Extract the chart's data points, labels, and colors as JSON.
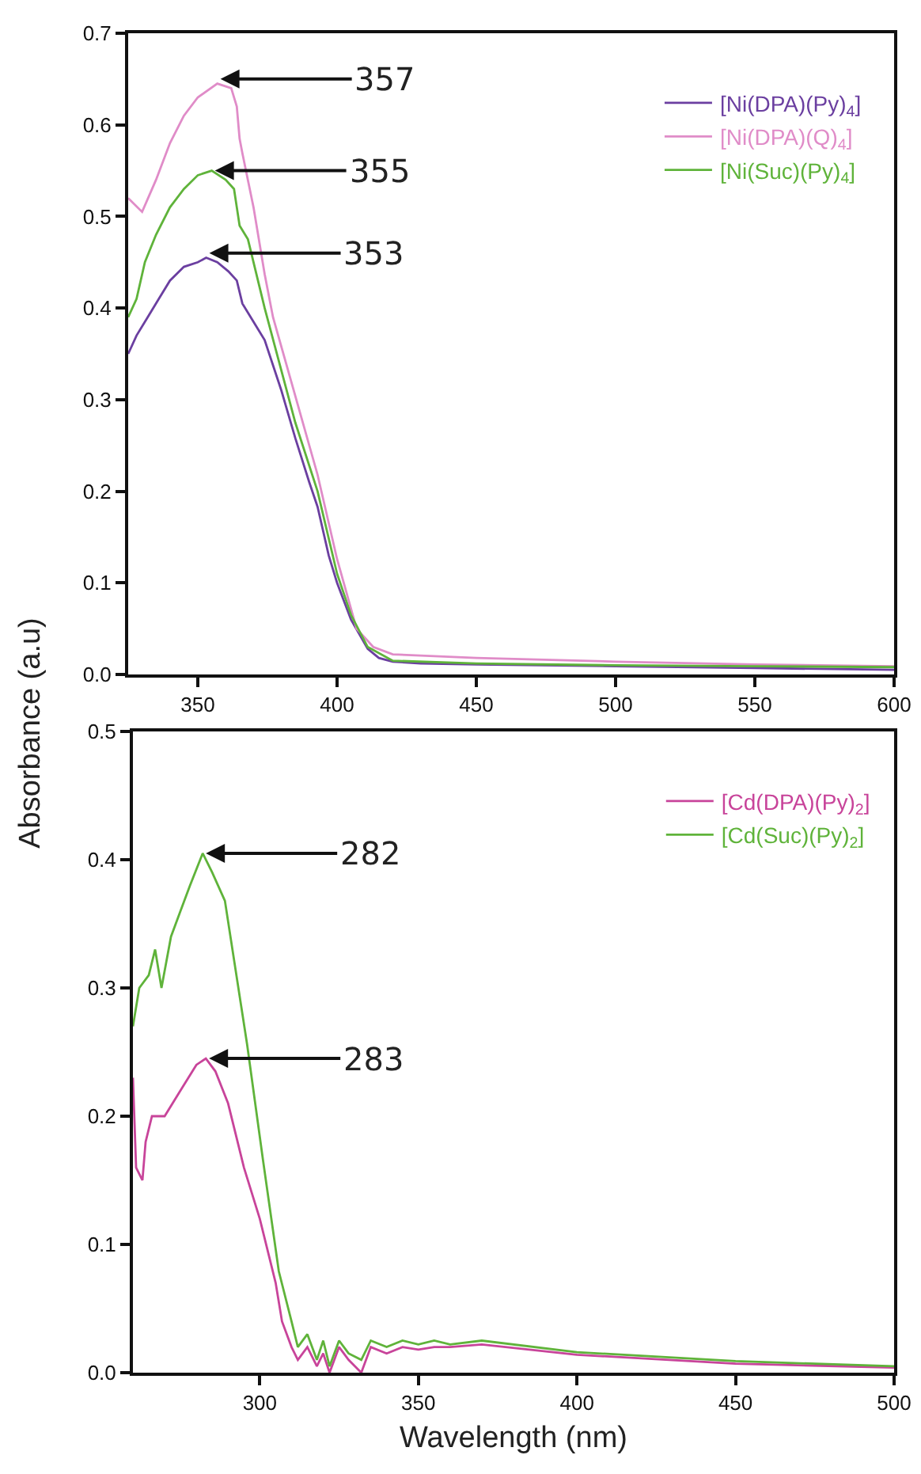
{
  "chart_data": [
    {
      "type": "line",
      "ylabel": "Absorbance (a.u)",
      "xlim": [
        325,
        600
      ],
      "xticks": [
        350,
        400,
        450,
        500,
        550,
        600
      ],
      "ylim": [
        0,
        0.7
      ],
      "yticks": [
        {
          "value": 0,
          "label": "0.0"
        },
        0.1,
        0.2,
        0.3,
        0.4,
        0.5,
        0.6,
        0.7
      ],
      "grid": false,
      "legend": "top right",
      "marker": "none",
      "line_style": "solid",
      "series": [
        {
          "name": "[Ni(DPA)(Py)$_{4}$]",
          "color": "#6b3fa0",
          "x": [
            325,
            328,
            332,
            336,
            340,
            345,
            350,
            353,
            357,
            361,
            364,
            366,
            370,
            374,
            380,
            385,
            390,
            393,
            397,
            400,
            405,
            411,
            415,
            420,
            430,
            450,
            500,
            550,
            600
          ],
          "values": [
            0.35,
            0.37,
            0.39,
            0.41,
            0.43,
            0.445,
            0.45,
            0.455,
            0.45,
            0.44,
            0.43,
            0.405,
            0.385,
            0.365,
            0.31,
            0.258,
            0.21,
            0.183,
            0.13,
            0.1,
            0.06,
            0.028,
            0.018,
            0.014,
            0.012,
            0.011,
            0.009,
            0.007,
            0.005
          ]
        },
        {
          "name": "[Ni(DPA)(Q)$_{4}$]",
          "color": "#e08cc8",
          "x": [
            325,
            330,
            335,
            340,
            345,
            350,
            357,
            362,
            364,
            365,
            366,
            370,
            374,
            377,
            385,
            393,
            400,
            407,
            413,
            420,
            450,
            500,
            550,
            600
          ],
          "values": [
            0.52,
            0.505,
            0.54,
            0.58,
            0.61,
            0.63,
            0.645,
            0.64,
            0.62,
            0.585,
            0.569,
            0.51,
            0.437,
            0.39,
            0.304,
            0.218,
            0.126,
            0.05,
            0.03,
            0.022,
            0.018,
            0.014,
            0.011,
            0.009
          ]
        },
        {
          "name": "[Ni(Suc)(Py)$_{4}$]",
          "color": "#5fb33a",
          "x": [
            325,
            328,
            331,
            335,
            340,
            345,
            350,
            355,
            360,
            363,
            364,
            365,
            368,
            374,
            385,
            393,
            400,
            405,
            411,
            420,
            450,
            500,
            550,
            600
          ],
          "values": [
            0.39,
            0.41,
            0.45,
            0.48,
            0.51,
            0.53,
            0.545,
            0.55,
            0.54,
            0.53,
            0.51,
            0.49,
            0.475,
            0.4,
            0.275,
            0.2,
            0.11,
            0.065,
            0.03,
            0.015,
            0.012,
            0.01,
            0.009,
            0.008
          ]
        }
      ],
      "annotations": [
        {
          "text": "357",
          "x": 357,
          "y": 0.65
        },
        {
          "text": "355",
          "x": 355,
          "y": 0.55
        },
        {
          "text": "353",
          "x": 353,
          "y": 0.46
        }
      ]
    },
    {
      "type": "line",
      "xlabel": "Wavelength (nm)",
      "xlim": [
        260,
        500
      ],
      "xticks": [
        300,
        350,
        400,
        450,
        500
      ],
      "ylim": [
        0,
        0.5
      ],
      "yticks": [
        {
          "value": 0,
          "label": "0.0"
        },
        0.1,
        0.2,
        0.3,
        0.4,
        0.5
      ],
      "grid": false,
      "legend": "top right",
      "marker": "none",
      "line_style": "solid",
      "series": [
        {
          "name": "[Cd(DPA)(Py)$_{2}$]",
          "color": "#c8449a",
          "x": [
            260,
            261,
            263,
            264,
            266,
            270,
            275,
            280,
            283,
            286,
            290,
            295,
            300,
            305,
            307,
            310,
            312,
            315,
            318,
            320,
            322,
            325,
            328,
            332,
            335,
            340,
            345,
            350,
            355,
            360,
            370,
            400,
            450,
            500
          ],
          "values": [
            0.23,
            0.16,
            0.15,
            0.18,
            0.2,
            0.2,
            0.22,
            0.24,
            0.245,
            0.235,
            0.21,
            0.16,
            0.12,
            0.07,
            0.04,
            0.02,
            0.01,
            0.02,
            0.005,
            0.015,
            0.0,
            0.02,
            0.01,
            0.0,
            0.02,
            0.015,
            0.02,
            0.018,
            0.02,
            0.02,
            0.022,
            0.014,
            0.007,
            0.004
          ]
        },
        {
          "name": "[Cd(Suc)(Py)$_{2}$]",
          "color": "#5fb33a",
          "x": [
            260,
            262,
            265,
            267,
            269,
            272,
            275,
            278,
            282,
            285,
            289,
            296,
            301,
            306,
            310,
            312,
            315,
            318,
            320,
            322,
            325,
            328,
            332,
            335,
            340,
            345,
            350,
            355,
            360,
            370,
            400,
            450,
            500
          ],
          "values": [
            0.27,
            0.3,
            0.31,
            0.33,
            0.3,
            0.34,
            0.36,
            0.38,
            0.405,
            0.39,
            0.368,
            0.256,
            0.166,
            0.079,
            0.04,
            0.02,
            0.03,
            0.01,
            0.025,
            0.005,
            0.025,
            0.015,
            0.01,
            0.025,
            0.02,
            0.025,
            0.022,
            0.025,
            0.022,
            0.025,
            0.016,
            0.009,
            0.005
          ]
        }
      ],
      "annotations": [
        {
          "text": "282",
          "x": 282,
          "y": 0.405
        },
        {
          "text": "283",
          "x": 283,
          "y": 0.245
        }
      ]
    }
  ]
}
